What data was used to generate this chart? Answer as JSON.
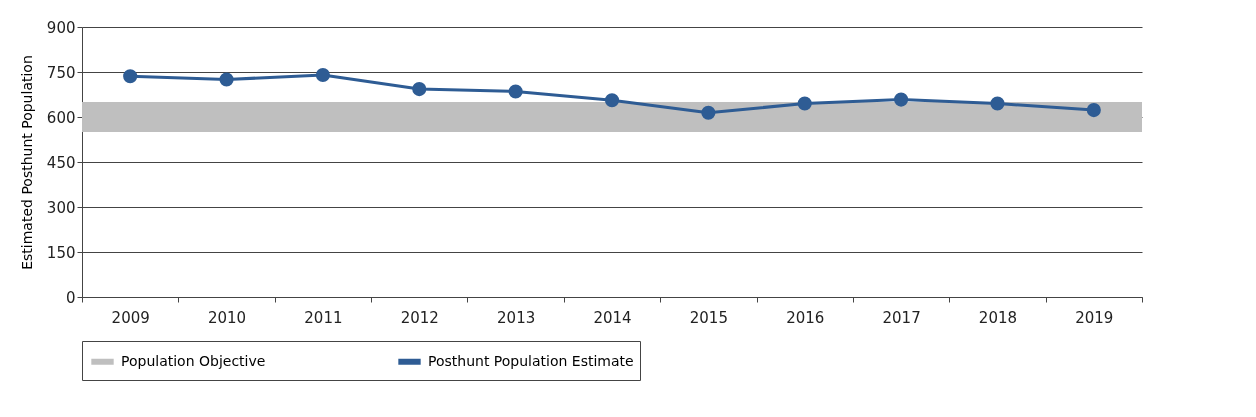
{
  "chart_data": {
    "type": "line",
    "ylabel": "Estimated Posthunt Population",
    "categories": [
      "2009",
      "2010",
      "2011",
      "2012",
      "2013",
      "2014",
      "2015",
      "2016",
      "2017",
      "2018",
      "2019"
    ],
    "series": [
      {
        "name": "Posthunt Population Estimate",
        "color": "#2e5c94",
        "values": [
          736,
          725,
          740,
          693,
          685,
          656,
          614,
          645,
          658,
          645,
          623
        ]
      }
    ],
    "bands": [
      {
        "axis": "y",
        "from": 550,
        "to": 650,
        "label": "Population Objective",
        "color": "#bfbfbf"
      }
    ],
    "ylim": [
      0,
      900
    ],
    "yticks": [
      0,
      150,
      300,
      450,
      600,
      750,
      900
    ],
    "grid": "y",
    "legend": "bottom",
    "marker": "circle",
    "line_style": "solid"
  }
}
